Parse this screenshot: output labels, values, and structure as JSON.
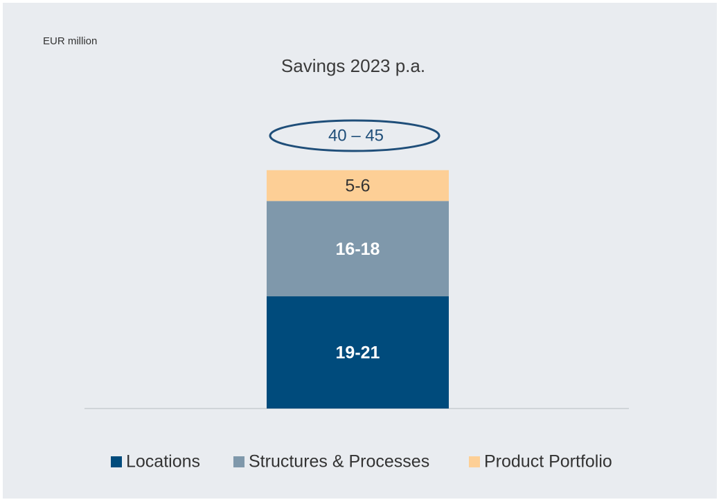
{
  "chart_data": {
    "type": "bar",
    "stacked": true,
    "unit_label": "EUR million",
    "title": "Savings 2023 p.a.",
    "total_label": "40 – 45",
    "categories": [
      null
    ],
    "series": [
      {
        "name": "Locations",
        "color": "#004b7c",
        "values": [
          20
        ],
        "value_labels": [
          "19-21"
        ]
      },
      {
        "name": "Structures & Processes",
        "color": "#7f98ab",
        "values": [
          17
        ],
        "value_labels": [
          "16-18"
        ]
      },
      {
        "name": "Product Portfolio",
        "color": "#fdcf96",
        "values": [
          5.5
        ],
        "value_labels": [
          "5-6"
        ]
      }
    ]
  }
}
